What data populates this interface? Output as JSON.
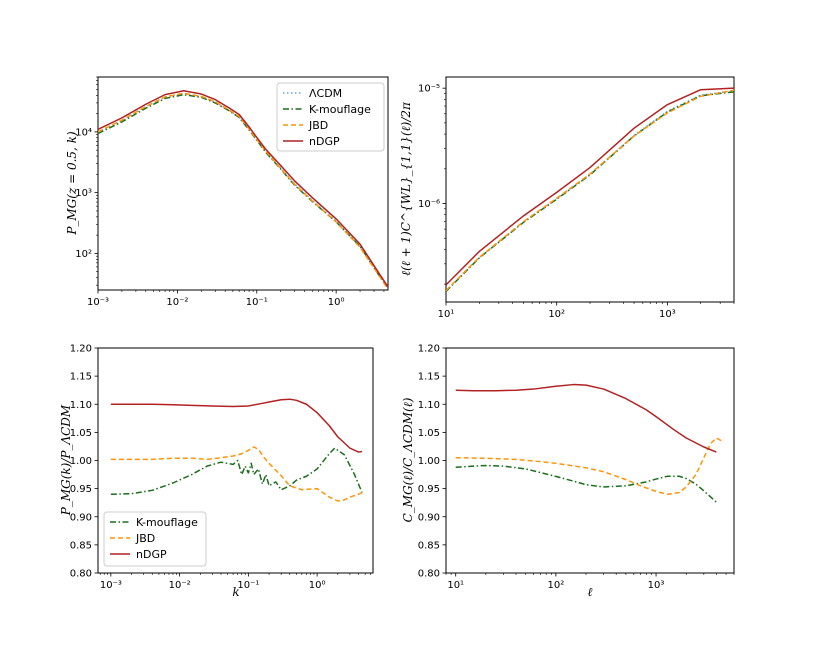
{
  "colors": {
    "lcdm": "#5aa9e6",
    "kmouflage": "#1b6e1b",
    "jbd": "#ff9408",
    "ndgp": "#b22222"
  },
  "chart_data": [
    {
      "type": "line",
      "panel": "top-left",
      "xscale": "log",
      "yscale": "log",
      "xlim": [
        0.001,
        4.5
      ],
      "ylim": [
        25,
        80000
      ],
      "xlabel": "",
      "ylabel": "P_MG(z = 0.5, k)",
      "xticks": [
        {
          "value": 0.001,
          "label": "10⁻³"
        },
        {
          "value": 0.01,
          "label": "10⁻²"
        },
        {
          "value": 0.1,
          "label": "10⁻¹"
        },
        {
          "value": 1,
          "label": "10⁰"
        }
      ],
      "yticks": [
        {
          "value": 100,
          "label": "10²"
        },
        {
          "value": 1000,
          "label": "10³"
        },
        {
          "value": 10000,
          "label": "10⁴"
        }
      ],
      "legend": {
        "placement": "top-right",
        "entries": [
          "ΛCDM",
          "K-mouflage",
          "JBD",
          "nDGP"
        ]
      },
      "series": [
        {
          "name": "ΛCDM",
          "style": "dotted",
          "color_key": "lcdm",
          "x": [
            0.001,
            0.002,
            0.004,
            0.007,
            0.012,
            0.02,
            0.03,
            0.045,
            0.06,
            0.08,
            0.1,
            0.13,
            0.2,
            0.3,
            0.5,
            1.0,
            2.0,
            4.5
          ],
          "y": [
            10000,
            15500,
            26000,
            37500,
            43000,
            38000,
            31000,
            22500,
            17500,
            11000,
            7400,
            4700,
            2550,
            1400,
            750,
            340,
            130,
            27
          ]
        },
        {
          "name": "K-mouflage",
          "style": "dashdot",
          "color_key": "kmouflage",
          "x": [
            0.001,
            0.002,
            0.004,
            0.007,
            0.012,
            0.02,
            0.03,
            0.045,
            0.06,
            0.08,
            0.1,
            0.13,
            0.2,
            0.3,
            0.5,
            1.0,
            2.0,
            4.5
          ],
          "y": [
            9400,
            14600,
            24500,
            35500,
            41000,
            37000,
            30000,
            22200,
            17300,
            10800,
            7300,
            4600,
            2450,
            1330,
            715,
            330,
            131,
            26
          ]
        },
        {
          "name": "JBD",
          "style": "dashed",
          "color_key": "jbd",
          "x": [
            0.001,
            0.002,
            0.004,
            0.007,
            0.012,
            0.02,
            0.03,
            0.045,
            0.06,
            0.08,
            0.1,
            0.13,
            0.2,
            0.3,
            0.5,
            1.0,
            2.0,
            4.5
          ],
          "y": [
            10000,
            15600,
            26100,
            37700,
            43200,
            38300,
            31300,
            22800,
            17900,
            11200,
            7500,
            4800,
            2500,
            1370,
            730,
            330,
            126,
            26
          ]
        },
        {
          "name": "nDGP",
          "style": "solid",
          "color_key": "ndgp",
          "x": [
            0.001,
            0.002,
            0.004,
            0.007,
            0.012,
            0.02,
            0.03,
            0.045,
            0.06,
            0.08,
            0.1,
            0.13,
            0.2,
            0.3,
            0.5,
            1.0,
            2.0,
            4.5
          ],
          "y": [
            11000,
            17000,
            28500,
            41000,
            47500,
            42000,
            34000,
            24700,
            19300,
            12100,
            8100,
            5150,
            2800,
            1560,
            830,
            370,
            142,
            28
          ]
        }
      ]
    },
    {
      "type": "line",
      "panel": "top-right",
      "xscale": "log",
      "yscale": "log",
      "xlim": [
        10,
        4000
      ],
      "ylim": [
        1.4e-07,
        1.25e-05
      ],
      "xlabel": "",
      "ylabel": "ℓ(ℓ + 1)C^{WL}_{1,1}(ℓ)/2π",
      "xticks": [
        {
          "value": 10,
          "label": "10¹"
        },
        {
          "value": 100,
          "label": "10²"
        },
        {
          "value": 1000,
          "label": "10³"
        }
      ],
      "yticks": [
        {
          "value": 1e-06,
          "label": "10⁻⁶"
        },
        {
          "value": 1e-05,
          "label": "10⁻⁵"
        }
      ],
      "series": [
        {
          "name": "ΛCDM",
          "style": "dotted",
          "color_key": "lcdm",
          "x": [
            10,
            20,
            50,
            100,
            200,
            500,
            1000,
            2000,
            4000
          ],
          "y": [
            1.75e-07,
            3.4e-07,
            6.9e-07,
            1.1e-06,
            1.8e-06,
            3.9e-06,
            6.3e-06,
            8.7e-06,
            9.5e-06
          ]
        },
        {
          "name": "K-mouflage",
          "style": "dashdot",
          "color_key": "kmouflage",
          "x": [
            10,
            20,
            50,
            100,
            200,
            500,
            1000,
            2000,
            4000
          ],
          "y": [
            1.73e-07,
            3.38e-07,
            6.85e-07,
            1.09e-06,
            1.77e-06,
            3.85e-06,
            6.2e-06,
            8.6e-06,
            9.3e-06
          ]
        },
        {
          "name": "JBD",
          "style": "dashed",
          "color_key": "jbd",
          "x": [
            10,
            20,
            50,
            100,
            200,
            500,
            1000,
            2000,
            4000
          ],
          "y": [
            1.76e-07,
            3.42e-07,
            6.95e-07,
            1.11e-06,
            1.8e-06,
            3.85e-06,
            6.1e-06,
            8.5e-06,
            9.6e-06
          ]
        },
        {
          "name": "nDGP",
          "style": "solid",
          "color_key": "ndgp",
          "x": [
            10,
            20,
            50,
            100,
            200,
            500,
            1000,
            2000,
            4000
          ],
          "y": [
            1.97e-07,
            3.84e-07,
            7.8e-07,
            1.25e-06,
            2.05e-06,
            4.5e-06,
            7.2e-06,
            9.7e-06,
            1e-05
          ]
        }
      ]
    },
    {
      "type": "line",
      "panel": "bottom-left",
      "xscale": "log",
      "yscale": "linear",
      "xlim": [
        0.00065,
        6.5
      ],
      "ylim": [
        0.8,
        1.2
      ],
      "xlabel": "k",
      "ylabel": "P_MG(k)/P_ΛCDM",
      "xticks": [
        {
          "value": 0.001,
          "label": "10⁻³"
        },
        {
          "value": 0.01,
          "label": "10⁻²"
        },
        {
          "value": 0.1,
          "label": "10⁻¹"
        },
        {
          "value": 1,
          "label": "10⁰"
        }
      ],
      "yticks": [
        {
          "value": 0.8,
          "label": "0.80"
        },
        {
          "value": 0.85,
          "label": "0.85"
        },
        {
          "value": 0.9,
          "label": "0.90"
        },
        {
          "value": 0.95,
          "label": "0.95"
        },
        {
          "value": 1.0,
          "label": "1.00"
        },
        {
          "value": 1.05,
          "label": "1.05"
        },
        {
          "value": 1.1,
          "label": "1.10"
        },
        {
          "value": 1.15,
          "label": "1.15"
        },
        {
          "value": 1.2,
          "label": "1.20"
        }
      ],
      "legend": {
        "placement": "bottom-left",
        "entries": [
          "K-mouflage",
          "JBD",
          "nDGP"
        ]
      },
      "series": [
        {
          "name": "K-mouflage",
          "style": "dashdot",
          "color_key": "kmouflage",
          "x": [
            0.001,
            0.002,
            0.004,
            0.008,
            0.015,
            0.025,
            0.04,
            0.06,
            0.07,
            0.08,
            0.09,
            0.1,
            0.11,
            0.12,
            0.14,
            0.16,
            0.18,
            0.2,
            0.25,
            0.3,
            0.4,
            0.5,
            0.7,
            1.0,
            1.5,
            1.8,
            2.5,
            3.5,
            4.5
          ],
          "y": [
            0.94,
            0.941,
            0.947,
            0.96,
            0.975,
            0.99,
            0.997,
            0.993,
            1.0,
            0.975,
            0.99,
            0.978,
            0.995,
            0.975,
            0.985,
            0.958,
            0.975,
            0.955,
            0.962,
            0.948,
            0.955,
            0.965,
            0.972,
            0.985,
            1.012,
            1.022,
            1.01,
            0.975,
            0.943
          ]
        },
        {
          "name": "JBD",
          "style": "dashed",
          "color_key": "jbd",
          "x": [
            0.001,
            0.002,
            0.004,
            0.008,
            0.015,
            0.025,
            0.04,
            0.06,
            0.08,
            0.1,
            0.12,
            0.14,
            0.17,
            0.2,
            0.3,
            0.4,
            0.6,
            1.0,
            1.5,
            2.0,
            2.5,
            3.0,
            4.0,
            4.5
          ],
          "y": [
            1.002,
            1.002,
            1.002,
            1.004,
            1.004,
            1.002,
            1.005,
            1.008,
            1.012,
            1.018,
            1.024,
            1.02,
            1.005,
            0.995,
            0.973,
            0.955,
            0.948,
            0.95,
            0.935,
            0.928,
            0.93,
            0.935,
            0.94,
            0.943
          ]
        },
        {
          "name": "nDGP",
          "style": "solid",
          "color_key": "ndgp",
          "x": [
            0.001,
            0.002,
            0.004,
            0.008,
            0.015,
            0.03,
            0.06,
            0.1,
            0.15,
            0.2,
            0.3,
            0.4,
            0.5,
            0.7,
            1.0,
            1.5,
            2.0,
            3.0,
            4.0,
            4.5
          ],
          "y": [
            1.1,
            1.1,
            1.1,
            1.099,
            1.098,
            1.097,
            1.096,
            1.097,
            1.101,
            1.104,
            1.108,
            1.109,
            1.107,
            1.1,
            1.085,
            1.062,
            1.042,
            1.022,
            1.015,
            1.016
          ]
        }
      ]
    },
    {
      "type": "line",
      "panel": "bottom-right",
      "xscale": "log",
      "yscale": "linear",
      "xlim": [
        8,
        6000
      ],
      "ylim": [
        0.8,
        1.2
      ],
      "xlabel": "ℓ",
      "ylabel": "C_MG(ℓ)/C_ΛCDM(ℓ)",
      "xticks": [
        {
          "value": 10,
          "label": "10¹"
        },
        {
          "value": 100,
          "label": "10²"
        },
        {
          "value": 1000,
          "label": "10³"
        }
      ],
      "yticks": [
        {
          "value": 0.8,
          "label": "0.80"
        },
        {
          "value": 0.85,
          "label": "0.85"
        },
        {
          "value": 0.9,
          "label": "0.90"
        },
        {
          "value": 0.95,
          "label": "0.95"
        },
        {
          "value": 1.0,
          "label": "1.00"
        },
        {
          "value": 1.05,
          "label": "1.05"
        },
        {
          "value": 1.1,
          "label": "1.10"
        },
        {
          "value": 1.15,
          "label": "1.15"
        },
        {
          "value": 1.2,
          "label": "1.20"
        }
      ],
      "series": [
        {
          "name": "K-mouflage",
          "style": "dashdot",
          "color_key": "kmouflage",
          "x": [
            10,
            15,
            20,
            30,
            50,
            80,
            120,
            200,
            300,
            500,
            800,
            1000,
            1300,
            1700,
            2000,
            2500,
            3000,
            4000
          ],
          "y": [
            0.988,
            0.99,
            0.991,
            0.99,
            0.985,
            0.976,
            0.968,
            0.957,
            0.953,
            0.955,
            0.962,
            0.967,
            0.972,
            0.972,
            0.968,
            0.958,
            0.946,
            0.926
          ]
        },
        {
          "name": "JBD",
          "style": "dashed",
          "color_key": "jbd",
          "x": [
            10,
            20,
            40,
            70,
            100,
            200,
            300,
            500,
            700,
            1000,
            1300,
            1700,
            2000,
            2500,
            3000,
            3500,
            4000,
            4500
          ],
          "y": [
            1.005,
            1.004,
            1.002,
            0.998,
            0.995,
            0.987,
            0.98,
            0.966,
            0.955,
            0.945,
            0.94,
            0.943,
            0.953,
            0.975,
            1.005,
            1.03,
            1.04,
            1.035
          ]
        },
        {
          "name": "nDGP",
          "style": "solid",
          "color_key": "ndgp",
          "x": [
            10,
            15,
            25,
            40,
            60,
            100,
            150,
            200,
            300,
            500,
            800,
            1000,
            1500,
            2000,
            3000,
            4000
          ],
          "y": [
            1.125,
            1.124,
            1.124,
            1.125,
            1.127,
            1.132,
            1.135,
            1.134,
            1.127,
            1.11,
            1.09,
            1.078,
            1.055,
            1.04,
            1.024,
            1.015
          ]
        }
      ]
    }
  ]
}
